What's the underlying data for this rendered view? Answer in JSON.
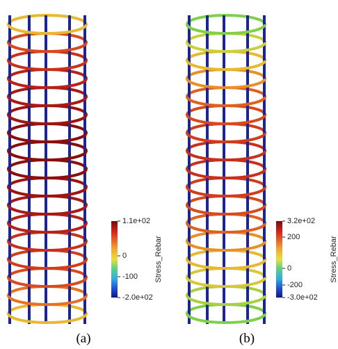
{
  "panels": [
    {
      "caption": "(a)",
      "colorbar": {
        "title": "Stress_Rebar",
        "labels": [
          "1.1e+02",
          "0",
          "-100",
          "-2.0e+02"
        ]
      }
    },
    {
      "caption": "(b)",
      "colorbar": {
        "title": "Stress_Rebar",
        "labels": [
          "3.2e+02",
          "200",
          "0",
          "-200",
          "-3.0e+02"
        ]
      }
    }
  ]
}
